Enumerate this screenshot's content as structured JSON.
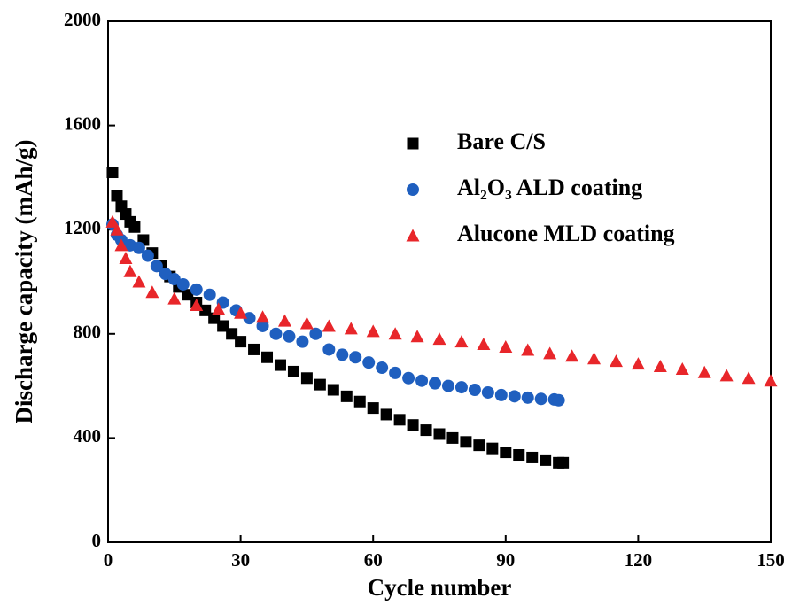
{
  "chart_data": {
    "type": "scatter",
    "xlabel": "Cycle number",
    "ylabel": "Discharge capacity (mAh/g)",
    "xlim": [
      0,
      150
    ],
    "xticks": [
      0,
      30,
      60,
      90,
      120,
      150
    ],
    "ylim": [
      0,
      2000
    ],
    "yticks": [
      0,
      400,
      800,
      1200,
      1600,
      2000
    ],
    "series": [
      {
        "name": "Bare C/S",
        "color": "#000000",
        "marker": "square",
        "x": [
          1,
          2,
          3,
          4,
          5,
          6,
          8,
          10,
          12,
          14,
          16,
          18,
          20,
          22,
          24,
          26,
          28,
          30,
          33,
          36,
          39,
          42,
          45,
          48,
          51,
          54,
          57,
          60,
          63,
          66,
          69,
          72,
          75,
          78,
          81,
          84,
          87,
          90,
          93,
          96,
          99,
          102,
          103
        ],
        "values": [
          1420,
          1330,
          1290,
          1260,
          1230,
          1210,
          1160,
          1110,
          1060,
          1020,
          980,
          950,
          920,
          890,
          860,
          830,
          800,
          770,
          740,
          710,
          680,
          655,
          630,
          605,
          585,
          560,
          540,
          515,
          490,
          470,
          450,
          430,
          415,
          400,
          385,
          372,
          360,
          345,
          335,
          325,
          315,
          305,
          305
        ]
      },
      {
        "name": "Al₂O₃ ALD coating",
        "color": "#1f5fbf",
        "marker": "circle",
        "x": [
          1,
          2,
          3,
          5,
          7,
          9,
          11,
          13,
          15,
          17,
          20,
          23,
          26,
          29,
          32,
          35,
          38,
          41,
          44,
          47,
          50,
          53,
          56,
          59,
          62,
          65,
          68,
          71,
          74,
          77,
          80,
          83,
          86,
          89,
          92,
          95,
          98,
          101,
          102
        ],
        "values": [
          1220,
          1180,
          1160,
          1140,
          1130,
          1100,
          1060,
          1030,
          1010,
          990,
          970,
          950,
          920,
          890,
          860,
          830,
          800,
          790,
          770,
          800,
          740,
          720,
          710,
          690,
          670,
          650,
          630,
          620,
          610,
          600,
          595,
          585,
          575,
          565,
          560,
          555,
          550,
          548,
          545
        ]
      },
      {
        "name": "Alucone MLD coating",
        "color": "#e8262a",
        "marker": "triangle",
        "x": [
          1,
          2,
          3,
          4,
          5,
          7,
          10,
          15,
          20,
          25,
          30,
          35,
          40,
          45,
          50,
          55,
          60,
          65,
          70,
          75,
          80,
          85,
          90,
          95,
          100,
          105,
          110,
          115,
          120,
          125,
          130,
          135,
          140,
          145,
          150
        ],
        "values": [
          1230,
          1200,
          1140,
          1090,
          1040,
          1000,
          960,
          935,
          910,
          895,
          880,
          865,
          850,
          840,
          830,
          820,
          810,
          800,
          790,
          780,
          770,
          760,
          750,
          738,
          725,
          715,
          705,
          695,
          685,
          675,
          665,
          652,
          640,
          630,
          620
        ]
      }
    ]
  }
}
